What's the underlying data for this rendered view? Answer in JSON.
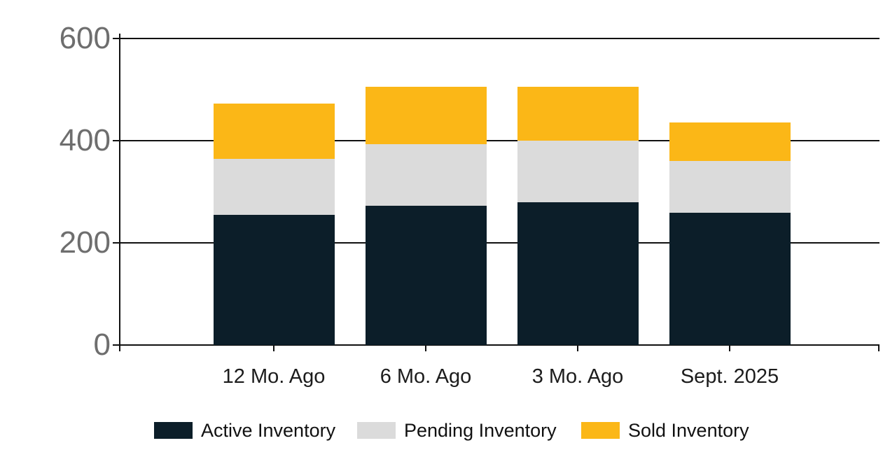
{
  "chart": {
    "background_color": "#ffffff",
    "axis_color": "#111111",
    "y_label_color": "#6e6e6e",
    "x_label_color": "#1c1c1c"
  },
  "chart_data": {
    "type": "bar",
    "subtype": "stacked",
    "title": "",
    "xlabel": "",
    "ylabel": "",
    "categories": [
      "12 Mo. Ago",
      "6 Mo. Ago",
      "3 Mo. Ago",
      "Sept. 2025"
    ],
    "series": [
      {
        "name": "Active Inventory",
        "color": "#0c1e29",
        "values": [
          255,
          273,
          280,
          259
        ]
      },
      {
        "name": "Pending Inventory",
        "color": "#dbdbdb",
        "values": [
          110,
          120,
          120,
          101
        ]
      },
      {
        "name": "Sold Inventory",
        "color": "#fbb717",
        "values": [
          107,
          112,
          105,
          75
        ]
      }
    ],
    "stack_totals": [
      472,
      505,
      505,
      435
    ],
    "y_ticks": [
      0,
      200,
      400,
      600
    ],
    "ylim": [
      0,
      600
    ],
    "grid": true,
    "legend_position": "bottom"
  }
}
